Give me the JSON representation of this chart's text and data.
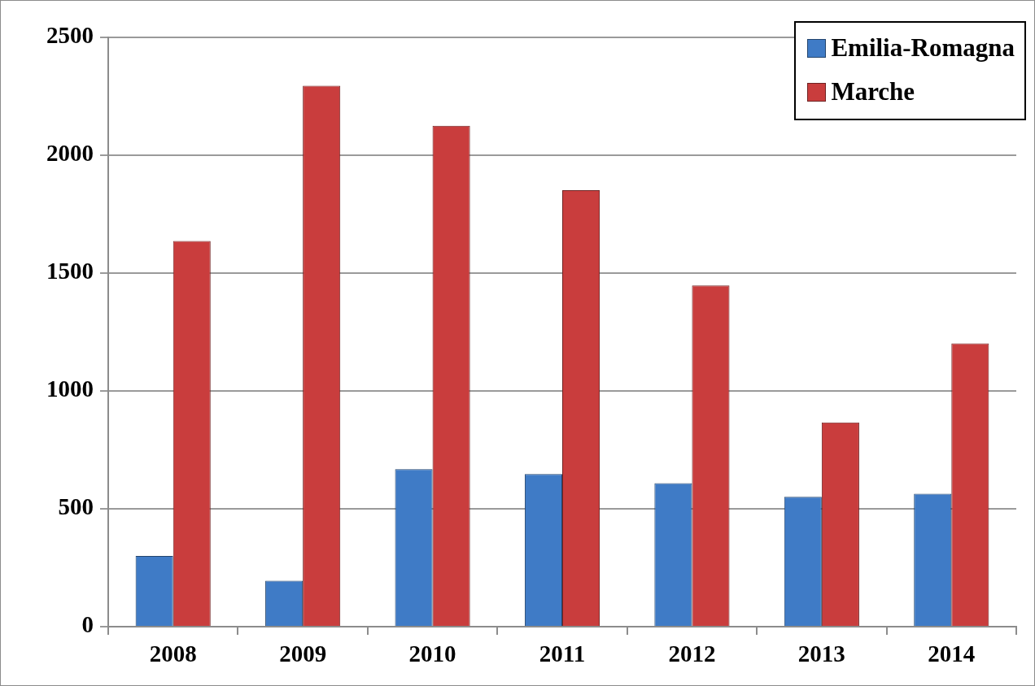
{
  "chart_data": {
    "type": "bar",
    "categories": [
      "2008",
      "2009",
      "2010",
      "2011",
      "2012",
      "2013",
      "2014"
    ],
    "series": [
      {
        "name": "Emilia-Romagna",
        "color": "#3f7bc6",
        "values": [
          300,
          195,
          668,
          647,
          609,
          551,
          564
        ]
      },
      {
        "name": "Marche",
        "color": "#c93d3d",
        "values": [
          1636,
          2295,
          2125,
          1852,
          1447,
          866,
          1202
        ]
      }
    ],
    "ylim": [
      0,
      2500
    ],
    "yticks": [
      0,
      500,
      1000,
      1500,
      2000,
      2500
    ],
    "grid": "y",
    "legend": "top right"
  }
}
